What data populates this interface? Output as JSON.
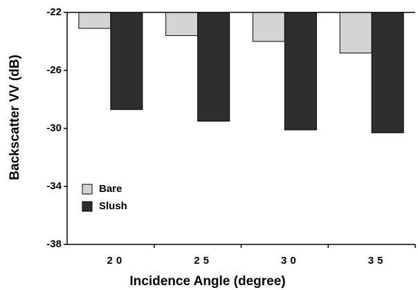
{
  "chart_data": {
    "type": "bar",
    "x_label": "Incidence Angle (degree)",
    "y_label": "Backscatter VV (dB)",
    "categories": [
      "20",
      "25",
      "30",
      "35"
    ],
    "series": [
      {
        "name": "Bare",
        "color": "#d4d4d4",
        "values": [
          -23.1,
          -23.6,
          -24.0,
          -24.8
        ]
      },
      {
        "name": "Slush",
        "color": "#2e2e2e",
        "values": [
          -28.7,
          -29.5,
          -30.1,
          -30.3
        ]
      }
    ],
    "ylim": [
      -38,
      -22
    ],
    "yticks": [
      -38,
      -34,
      -30,
      -26,
      -22
    ],
    "legend": "lower left"
  }
}
